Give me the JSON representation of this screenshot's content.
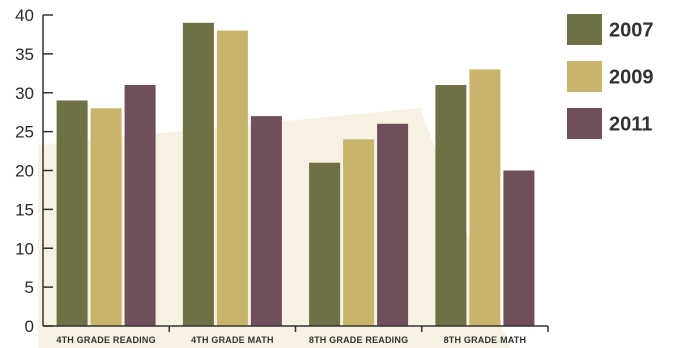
{
  "chart_data": {
    "type": "bar",
    "title": "",
    "xlabel": "",
    "ylabel": "",
    "categories": [
      "4TH GRADE READING",
      "4TH GRADE MATH",
      "8TH GRADE READING",
      "8TH GRADE MATH"
    ],
    "series": [
      {
        "name": "2007",
        "color": "#6f7044",
        "values": [
          29,
          39,
          21,
          31
        ]
      },
      {
        "name": "2009",
        "color": "#c8b46a",
        "values": [
          28,
          38,
          24,
          33
        ]
      },
      {
        "name": "2011",
        "color": "#6e4f5b",
        "values": [
          31,
          27,
          26,
          20
        ]
      }
    ],
    "ylim": [
      0,
      40
    ],
    "yticks": [
      0,
      5,
      10,
      15,
      20,
      25,
      30,
      35,
      40
    ],
    "grid": false,
    "legend": "right",
    "background_color": "#f7f1e3"
  }
}
